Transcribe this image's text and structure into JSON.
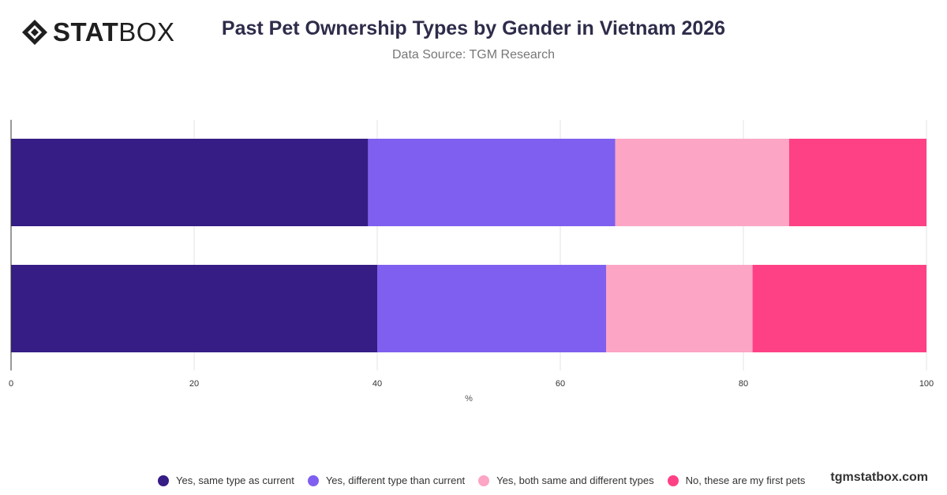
{
  "brand": {
    "logo_bold": "STAT",
    "logo_light": "BOX",
    "site": "tgmstatbox.com"
  },
  "header": {
    "title": "Past Pet Ownership Types by Gender in Vietnam 2026",
    "subtitle": "Data Source: TGM Research"
  },
  "chart_data": {
    "type": "bar",
    "orientation": "horizontal",
    "stacked": true,
    "title": "Past Pet Ownership Types by Gender in Vietnam 2026",
    "subtitle": "Data Source: TGM Research",
    "xlabel": "%",
    "ylabel": "",
    "xlim": [
      0,
      100
    ],
    "xticks": [
      0,
      20,
      40,
      60,
      80,
      100
    ],
    "grid": "vertical",
    "legend_position": "bottom",
    "categories": [
      "",
      ""
    ],
    "series": [
      {
        "name": "Yes, same type as current",
        "color": "#361c85",
        "values": [
          39,
          40
        ]
      },
      {
        "name": "Yes, different type than current",
        "color": "#7f5fef",
        "values": [
          27,
          25
        ]
      },
      {
        "name": "Yes, both same and different types",
        "color": "#fca5c5",
        "values": [
          19,
          16
        ]
      },
      {
        "name": "No, these are my first pets",
        "color": "#fe4185",
        "values": [
          15,
          19
        ]
      }
    ]
  }
}
